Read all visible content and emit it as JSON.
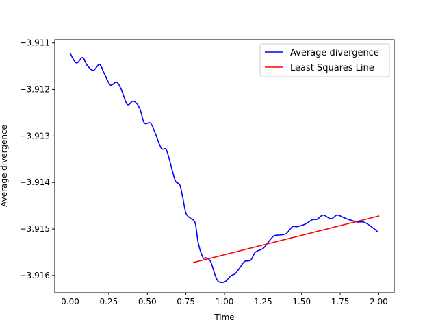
{
  "chart_data": {
    "type": "line",
    "title": "",
    "xlabel": "Time",
    "ylabel": "Average divergence",
    "xlim": [
      -0.1,
      2.1
    ],
    "ylim": [
      -3.91637,
      -3.91093
    ],
    "x_ticks": [
      0.0,
      0.25,
      0.5,
      0.75,
      1.0,
      1.25,
      1.5,
      1.75,
      2.0
    ],
    "x_tick_labels": [
      "0.00",
      "0.25",
      "0.50",
      "0.75",
      "1.00",
      "1.25",
      "1.50",
      "1.75",
      "2.00"
    ],
    "y_ticks": [
      -3.911,
      -3.912,
      -3.913,
      -3.914,
      -3.915,
      -3.916
    ],
    "y_tick_labels": [
      "−3.911",
      "−3.912",
      "−3.913",
      "−3.914",
      "−3.915",
      "−3.916"
    ],
    "grid": false,
    "legend": "top-right",
    "series": [
      {
        "name": "Average divergence",
        "color": "#0000ff",
        "x": [
          0.0,
          0.04,
          0.08,
          0.11,
          0.15,
          0.19,
          0.22,
          0.26,
          0.3,
          0.33,
          0.37,
          0.41,
          0.45,
          0.48,
          0.52,
          0.55,
          0.59,
          0.62,
          0.64,
          0.68,
          0.71,
          0.73,
          0.75,
          0.78,
          0.81,
          0.83,
          0.86,
          0.88,
          0.91,
          0.94,
          0.96,
          0.99,
          1.01,
          1.04,
          1.07,
          1.1,
          1.13,
          1.17,
          1.2,
          1.25,
          1.28,
          1.32,
          1.36,
          1.4,
          1.44,
          1.47,
          1.52,
          1.57,
          1.6,
          1.64,
          1.69,
          1.73,
          1.77,
          1.8,
          1.83,
          1.86,
          1.9,
          1.93,
          1.96,
          1.99
        ],
        "y": [
          -3.91122,
          -3.91143,
          -3.91131,
          -3.91148,
          -3.91159,
          -3.91146,
          -3.91165,
          -3.9119,
          -3.91184,
          -3.91199,
          -3.91232,
          -3.91225,
          -3.9124,
          -3.91272,
          -3.91272,
          -3.91293,
          -3.91326,
          -3.91328,
          -3.91347,
          -3.91395,
          -3.91405,
          -3.91433,
          -3.91466,
          -3.91477,
          -3.91487,
          -3.9153,
          -3.91561,
          -3.91562,
          -3.9157,
          -3.916,
          -3.91613,
          -3.91615,
          -3.91612,
          -3.91601,
          -3.91596,
          -3.91583,
          -3.9157,
          -3.91567,
          -3.9155,
          -3.91542,
          -3.9153,
          -3.91515,
          -3.91513,
          -3.9151,
          -3.91495,
          -3.91495,
          -3.9149,
          -3.9148,
          -3.91479,
          -3.9147,
          -3.91478,
          -3.9147,
          -3.91475,
          -3.91479,
          -3.91482,
          -3.91485,
          -3.91485,
          -3.9149,
          -3.91497,
          -3.91505
        ]
      },
      {
        "name": "Least Squares Line",
        "color": "#ff0000",
        "x": [
          0.8,
          2.0
        ],
        "y": [
          -3.91572,
          -3.91472
        ]
      }
    ]
  }
}
